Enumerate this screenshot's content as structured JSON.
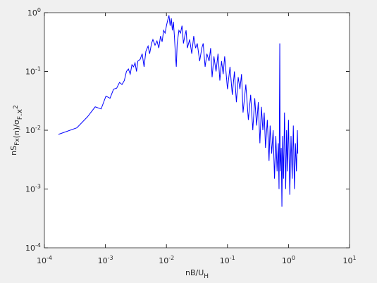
{
  "chart_data": {
    "type": "line",
    "xlabel": [
      {
        "text": "nB/U"
      },
      {
        "text": "H",
        "shift": "sub"
      }
    ],
    "ylabel": [
      {
        "text": "nS"
      },
      {
        "text": "Fx",
        "shift": "sub"
      },
      {
        "text": "(n)/σ"
      },
      {
        "text": "F",
        "shift": "sub"
      },
      {
        "text": ".x"
      },
      {
        "text": "2",
        "shift": "sup"
      }
    ],
    "xscale": "log",
    "yscale": "log",
    "xlim": [
      0.0001,
      10
    ],
    "ylim": [
      0.0001,
      1
    ],
    "xticks": [
      {
        "value": 0.0001,
        "label": "10",
        "sup": "-4"
      },
      {
        "value": 0.001,
        "label": "10",
        "sup": "-3"
      },
      {
        "value": 0.01,
        "label": "10",
        "sup": "-2"
      },
      {
        "value": 0.1,
        "label": "10",
        "sup": "-1"
      },
      {
        "value": 1,
        "label": "10",
        "sup": "0"
      },
      {
        "value": 10,
        "label": "10",
        "sup": "1"
      }
    ],
    "yticks": [
      {
        "value": 0.0001,
        "label": "10",
        "sup": "-4"
      },
      {
        "value": 0.001,
        "label": "10",
        "sup": "-3"
      },
      {
        "value": 0.01,
        "label": "10",
        "sup": "-2"
      },
      {
        "value": 0.1,
        "label": "10",
        "sup": "-1"
      },
      {
        "value": 1,
        "label": "10",
        "sup": "0"
      }
    ],
    "series": [
      {
        "color": "#0000ff",
        "x": [
          0.00017,
          0.00034,
          0.00051,
          0.00068,
          0.00085,
          0.00102,
          0.00119,
          0.00136,
          0.00153,
          0.0017,
          0.00187,
          0.00204,
          0.00221,
          0.00238,
          0.00255,
          0.00272,
          0.00289,
          0.00306,
          0.00323,
          0.0034,
          0.0037,
          0.004,
          0.0043,
          0.0046,
          0.005,
          0.0053,
          0.0057,
          0.006,
          0.0065,
          0.007,
          0.0075,
          0.008,
          0.0085,
          0.009,
          0.0095,
          0.01,
          0.0105,
          0.011,
          0.0115,
          0.012,
          0.0125,
          0.013,
          0.0135,
          0.014,
          0.0145,
          0.015,
          0.016,
          0.017,
          0.018,
          0.019,
          0.02,
          0.021,
          0.022,
          0.024,
          0.026,
          0.028,
          0.03,
          0.032,
          0.035,
          0.038,
          0.04,
          0.043,
          0.046,
          0.05,
          0.053,
          0.056,
          0.06,
          0.065,
          0.07,
          0.075,
          0.08,
          0.085,
          0.09,
          0.1,
          0.11,
          0.12,
          0.13,
          0.14,
          0.15,
          0.16,
          0.17,
          0.18,
          0.2,
          0.22,
          0.24,
          0.26,
          0.28,
          0.3,
          0.32,
          0.34,
          0.36,
          0.38,
          0.4,
          0.42,
          0.45,
          0.48,
          0.5,
          0.53,
          0.56,
          0.59,
          0.62,
          0.65,
          0.68,
          0.7,
          0.72,
          0.73,
          0.76,
          0.78,
          0.8,
          0.83,
          0.86,
          0.9,
          0.93,
          0.96,
          1.0,
          1.05,
          1.1,
          1.15,
          1.2,
          1.25,
          1.3,
          1.35,
          1.4,
          1.42
        ],
        "values": [
          0.0085,
          0.011,
          0.017,
          0.025,
          0.023,
          0.038,
          0.035,
          0.05,
          0.052,
          0.065,
          0.06,
          0.07,
          0.1,
          0.11,
          0.09,
          0.13,
          0.12,
          0.14,
          0.1,
          0.15,
          0.16,
          0.2,
          0.12,
          0.22,
          0.27,
          0.2,
          0.3,
          0.35,
          0.28,
          0.33,
          0.25,
          0.4,
          0.32,
          0.5,
          0.45,
          0.6,
          0.75,
          0.9,
          0.6,
          0.8,
          0.5,
          0.7,
          0.4,
          0.2,
          0.12,
          0.3,
          0.5,
          0.45,
          0.6,
          0.3,
          0.4,
          0.5,
          0.25,
          0.35,
          0.2,
          0.4,
          0.25,
          0.3,
          0.15,
          0.25,
          0.3,
          0.12,
          0.2,
          0.15,
          0.25,
          0.08,
          0.18,
          0.1,
          0.2,
          0.07,
          0.15,
          0.09,
          0.18,
          0.05,
          0.12,
          0.04,
          0.1,
          0.03,
          0.08,
          0.05,
          0.09,
          0.02,
          0.06,
          0.015,
          0.04,
          0.01,
          0.035,
          0.012,
          0.03,
          0.006,
          0.025,
          0.01,
          0.02,
          0.005,
          0.015,
          0.003,
          0.012,
          0.004,
          0.01,
          0.0015,
          0.008,
          0.002,
          0.006,
          0.001,
          0.3,
          0.002,
          0.005,
          0.0005,
          0.008,
          0.0015,
          0.02,
          0.001,
          0.01,
          0.002,
          0.015,
          0.0008,
          0.008,
          0.0015,
          0.012,
          0.001,
          0.006,
          0.002,
          0.01,
          0.004
        ]
      }
    ]
  }
}
